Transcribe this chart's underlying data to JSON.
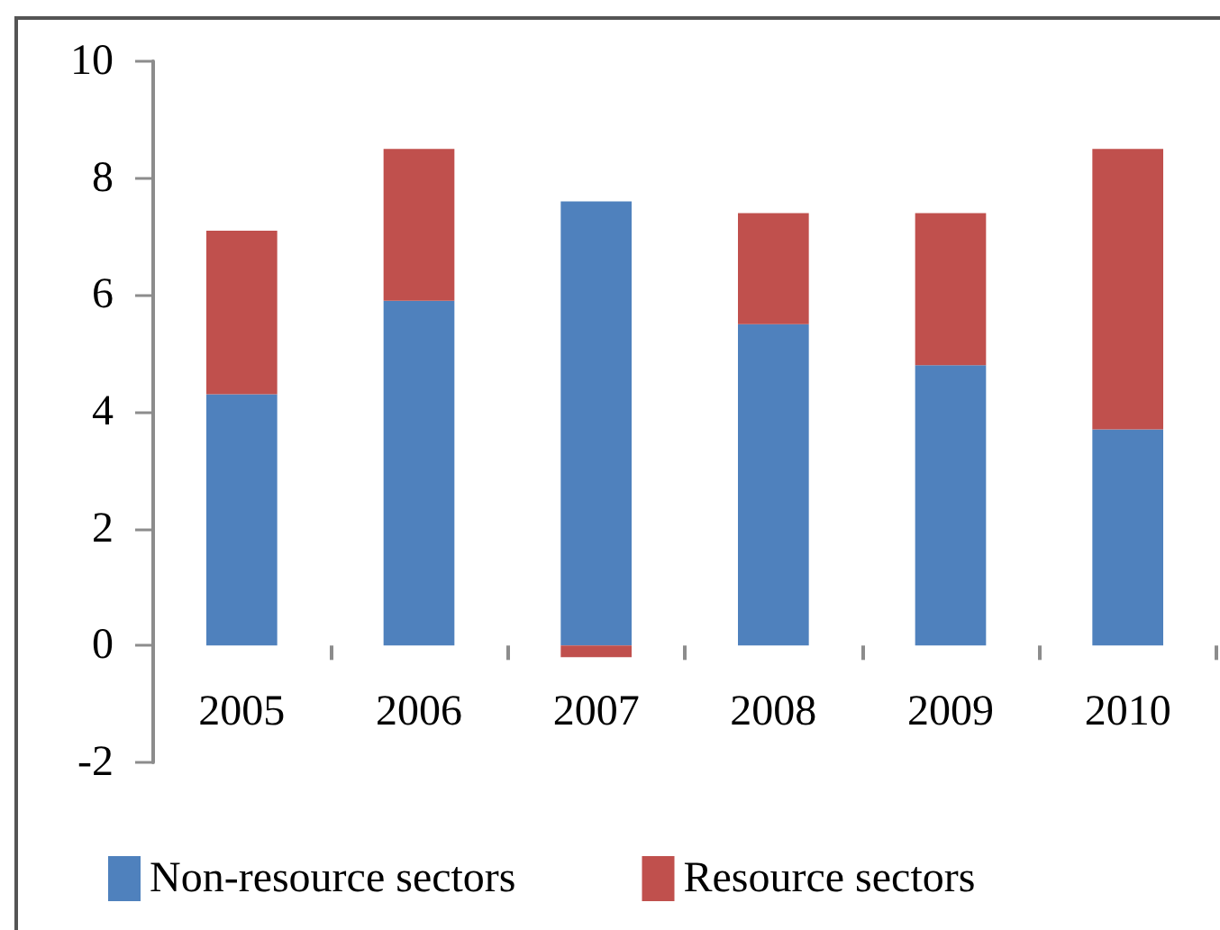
{
  "chart_data": {
    "type": "bar",
    "stacked": true,
    "categories": [
      "2005",
      "2006",
      "2007",
      "2008",
      "2009",
      "2010"
    ],
    "series": [
      {
        "name": "Non-resource sectors",
        "color": "#4f81bd",
        "values": [
          4.3,
          5.9,
          7.6,
          5.5,
          4.8,
          3.7
        ]
      },
      {
        "name": "Resource sectors",
        "color": "#c0504d",
        "values": [
          2.8,
          2.6,
          -0.2,
          1.9,
          2.6,
          4.8
        ]
      }
    ],
    "ylim": [
      -2,
      10
    ],
    "yticks": [
      -2,
      0,
      2,
      4,
      6,
      8,
      10
    ],
    "grid": false,
    "legend": "bottom"
  }
}
